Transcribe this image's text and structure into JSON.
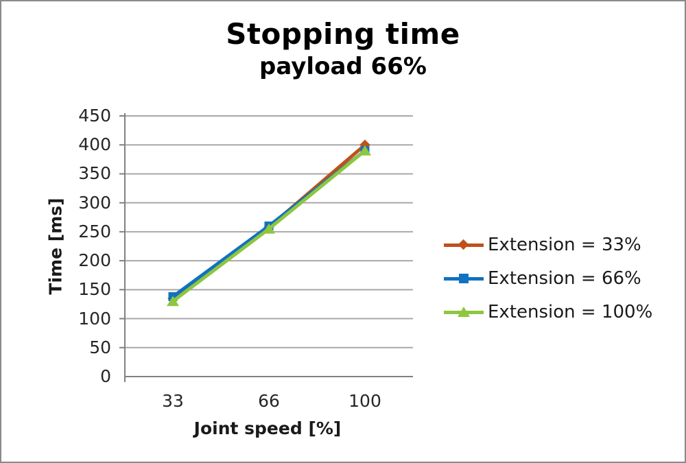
{
  "chart_data": {
    "type": "line",
    "title": "Stopping time",
    "subtitle": "payload 66%",
    "xlabel": "Joint speed [%]",
    "ylabel": "Time [ms]",
    "categories": [
      33,
      66,
      100
    ],
    "series": [
      {
        "name": "Extension = 33%",
        "values": [
          135,
          258,
          400
        ],
        "color": "#C0511A",
        "marker": "diamond"
      },
      {
        "name": "Extension = 66%",
        "values": [
          138,
          260,
          390
        ],
        "color": "#1072C0",
        "marker": "square"
      },
      {
        "name": "Extension = 100%",
        "values": [
          130,
          255,
          390
        ],
        "color": "#8DC63F",
        "marker": "triangle"
      }
    ],
    "ylim": [
      0,
      450
    ],
    "y_step": 50,
    "y_tick_labels": [
      "450",
      "400",
      "350",
      "300",
      "250",
      "200",
      "150",
      "100",
      "50",
      "0"
    ],
    "x_tick_labels": [
      "33",
      "66",
      "100"
    ],
    "grid": true,
    "legend_position": "right"
  },
  "style_colors": {
    "grid": "#A8A8A8",
    "axis": "#808080",
    "tick_text": "#262626",
    "title_text": "#000000",
    "frame_border": "#8A8A8A",
    "background": "#FFFFFF"
  }
}
